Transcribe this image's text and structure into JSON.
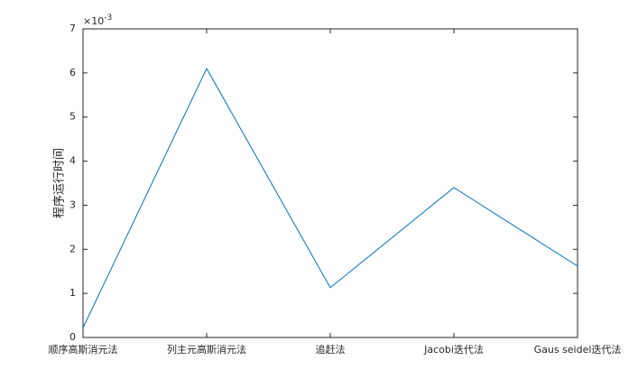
{
  "chart_data": {
    "type": "line",
    "y_label": "程序运行时间",
    "y_multiplier": {
      "base": "×10",
      "exponent": "-3"
    },
    "categories": [
      "顺序高斯消元法",
      "列主元高斯消元法",
      "追赶法",
      "Jacobi迭代法",
      "Gaus seidel迭代法"
    ],
    "values": [
      0.00022,
      0.0061,
      0.00113,
      0.0034,
      0.00162
    ],
    "color": "#0072bd",
    "ylim": [
      0,
      0.007
    ],
    "yticks": [
      {
        "value": 0,
        "label": "0"
      },
      {
        "value": 0.001,
        "label": "1"
      },
      {
        "value": 0.002,
        "label": "2"
      },
      {
        "value": 0.003,
        "label": "3"
      },
      {
        "value": 0.004,
        "label": "4"
      },
      {
        "value": 0.005,
        "label": "5"
      },
      {
        "value": 0.006,
        "label": "6"
      },
      {
        "value": 0.007,
        "label": "7"
      }
    ],
    "grid": false
  }
}
